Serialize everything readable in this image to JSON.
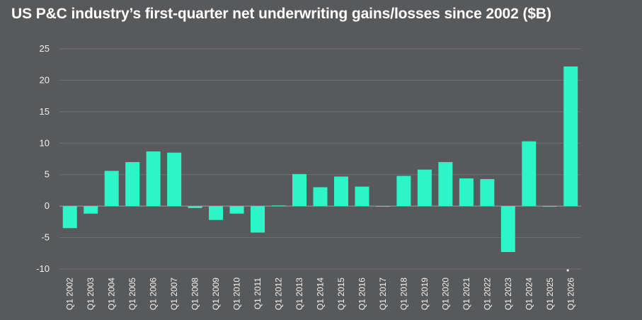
{
  "chart_data": {
    "type": "bar",
    "title": "US P&C industry’s first-quarter net underwriting gains/losses since 2002 ($B)",
    "xlabel": "",
    "ylabel": "",
    "ylim": [
      -10,
      25
    ],
    "yticks": [
      25,
      20,
      15,
      10,
      5,
      0,
      -5,
      -10
    ],
    "grid": true,
    "bar_color": "#2ef5c8",
    "categories": [
      "Q1 2002",
      "Q1 2003",
      "Q1 2004",
      "Q1 2005",
      "Q1 2006",
      "Q1 2007",
      "Q1 2008",
      "Q1 2009",
      "Q1 2010",
      "Q1 2011",
      "Q1 2012",
      "Q1 2013",
      "Q1 2014",
      "Q1 2015",
      "Q1 2016",
      "Q1 2017",
      "Q1 2018",
      "Q1 2019",
      "Q1 2020",
      "Q1 2021",
      "Q1 2022",
      "Q1 2023",
      "Q1 2024",
      "Q1 2025",
      "Q1 2026"
    ],
    "values": [
      -3.5,
      -1.2,
      5.6,
      7.0,
      8.7,
      8.5,
      -0.3,
      -2.2,
      -1.2,
      -4.2,
      0.1,
      5.1,
      3.0,
      4.7,
      3.1,
      0.0,
      4.8,
      5.8,
      7.0,
      4.4,
      4.3,
      -7.3,
      10.3,
      -0.1,
      22.2
    ],
    "footnote_marker": "•"
  }
}
